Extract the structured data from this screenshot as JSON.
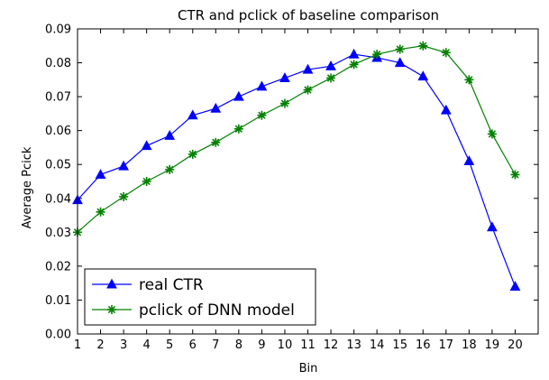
{
  "chart_data": {
    "type": "line",
    "title": "CTR and pclick of baseline comparison",
    "xlabel": "Bin",
    "ylabel": "Average Pcick",
    "x": [
      1,
      2,
      3,
      4,
      5,
      6,
      7,
      8,
      9,
      10,
      11,
      12,
      13,
      14,
      15,
      16,
      17,
      18,
      19,
      20
    ],
    "xlim": [
      1,
      21
    ],
    "ylim": [
      0,
      0.09
    ],
    "xticks": [
      "1",
      "2",
      "3",
      "4",
      "5",
      "6",
      "7",
      "8",
      "9",
      "10",
      "11",
      "12",
      "13",
      "14",
      "15",
      "16",
      "17",
      "18",
      "19",
      "20"
    ],
    "yticks": [
      "0.00",
      "0.01",
      "0.02",
      "0.03",
      "0.04",
      "0.05",
      "0.06",
      "0.07",
      "0.08",
      "0.09"
    ],
    "grid": false,
    "legend_position": "bottom-left",
    "series": [
      {
        "name": "real CTR",
        "color": "#0000ff",
        "marker": "triangle",
        "values": [
          0.0395,
          0.047,
          0.0495,
          0.0555,
          0.0585,
          0.0645,
          0.0665,
          0.07,
          0.073,
          0.0755,
          0.078,
          0.079,
          0.0825,
          0.0815,
          0.08,
          0.076,
          0.066,
          0.051,
          0.0315,
          0.014
        ]
      },
      {
        "name": "pclick of DNN model",
        "color": "#008000",
        "marker": "star",
        "values": [
          0.03,
          0.036,
          0.0405,
          0.045,
          0.0485,
          0.053,
          0.0565,
          0.0605,
          0.0645,
          0.068,
          0.072,
          0.0755,
          0.0795,
          0.0825,
          0.084,
          0.085,
          0.083,
          0.075,
          0.059,
          0.047
        ]
      }
    ]
  }
}
